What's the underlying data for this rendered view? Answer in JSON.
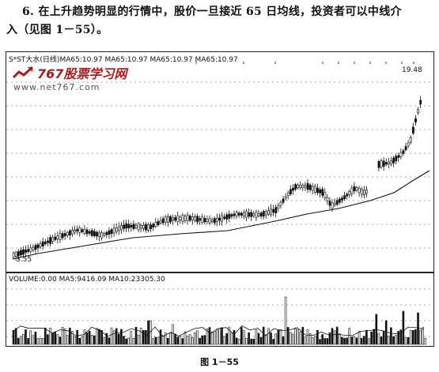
{
  "text": {
    "line1": "6. 在上升趋势明显的行情中，股价一旦接近 65 日均线，投资者可以中线介",
    "line2": "入（见图 1－55）。"
  },
  "chart": {
    "header": "S*ST大水(日线)MA65:10.97  MA65:10.97  MA65:10.97  MA65:10.97",
    "high_label": "19.48",
    "low_label": "3.55",
    "volume_header": "VOLUME:0.00  MA5:9416.09  MA10:23305.30"
  },
  "watermark": {
    "title": "767股票学习网",
    "url": "www.net767.com"
  },
  "caption": "图 1－55",
  "colors": {
    "candle": "#111111",
    "watermark_red": "#b0181a",
    "ma_line": "#111111"
  }
}
